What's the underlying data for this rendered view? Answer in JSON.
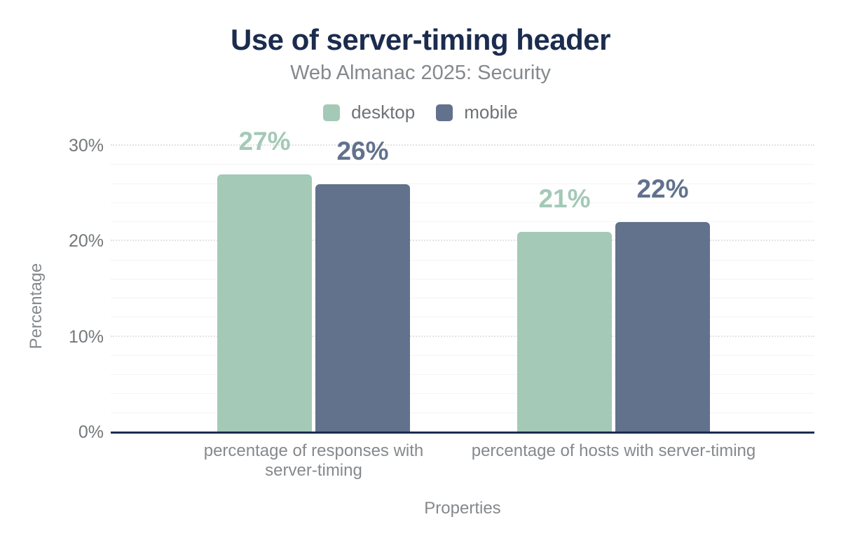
{
  "chart_data": {
    "type": "bar",
    "title": "Use of server-timing header",
    "subtitle": "Web Almanac 2025: Security",
    "xlabel": "Properties",
    "ylabel": "Percentage",
    "categories": [
      "percentage of responses with server-timing",
      "percentage of hosts with server-timing"
    ],
    "categories_display": [
      [
        "percentage of responses with",
        "server-timing"
      ],
      [
        "percentage of hosts with server-timing"
      ]
    ],
    "series": [
      {
        "name": "desktop",
        "color": "#a4c9b7",
        "values": [
          27,
          21
        ],
        "value_labels": [
          "27%",
          "21%"
        ]
      },
      {
        "name": "mobile",
        "color": "#62718c",
        "values": [
          26,
          22
        ],
        "value_labels": [
          "26%",
          "22%"
        ]
      }
    ],
    "yaxis": {
      "min": 0,
      "max": 30,
      "minor_step": 2,
      "ticks": [
        {
          "value": 0,
          "label": "0%"
        },
        {
          "value": 10,
          "label": "10%"
        },
        {
          "value": 20,
          "label": "20%"
        },
        {
          "value": 30,
          "label": "30%"
        }
      ]
    },
    "legend_position": "top",
    "grid": true,
    "colors": {
      "title_text": "#1b2c4e",
      "subtitle_text": "#85898c",
      "tick_text": "#74787b",
      "axis_line": "#1b2c4e",
      "major_grid": "#e2e2e2",
      "minor_grid": "#f4f4f4"
    }
  }
}
